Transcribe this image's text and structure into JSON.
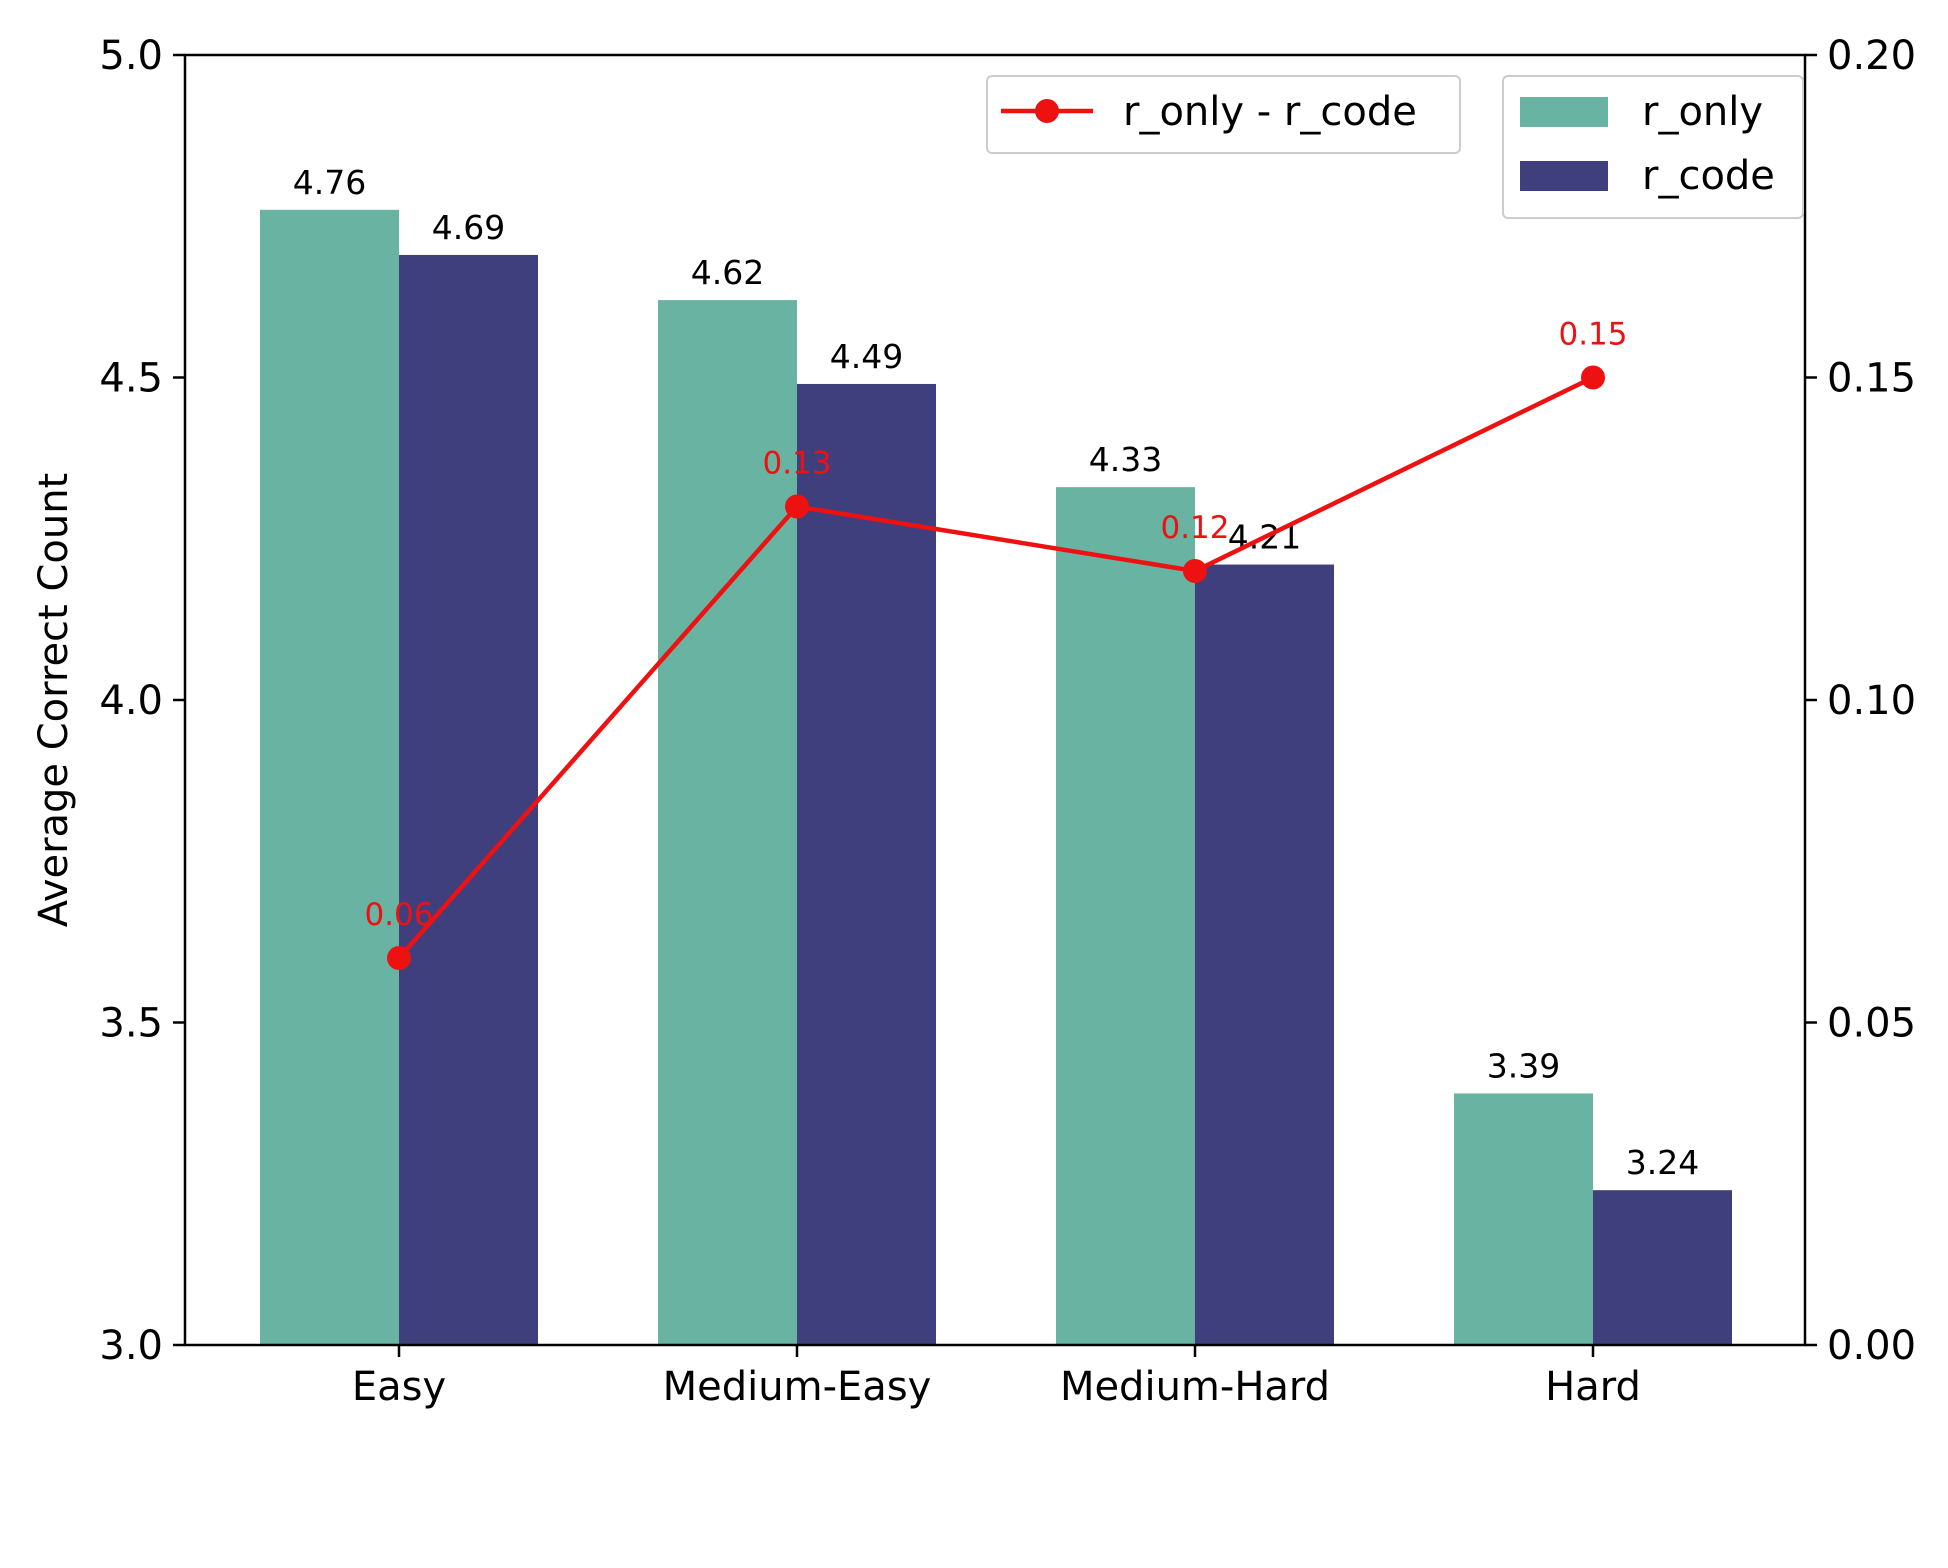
{
  "chart_data": {
    "type": "bar",
    "categories": [
      "Easy",
      "Medium-Easy",
      "Medium-Hard",
      "Hard"
    ],
    "series": [
      {
        "name": "r_only",
        "values": [
          4.76,
          4.62,
          4.33,
          3.39
        ],
        "color": "#69b3a2",
        "labels": [
          "4.76",
          "4.62",
          "4.33",
          "3.39"
        ]
      },
      {
        "name": "r_code",
        "values": [
          4.69,
          4.49,
          4.21,
          3.24
        ],
        "color": "#3f3f7d",
        "labels": [
          "4.69",
          "4.49",
          "4.21",
          "3.24"
        ]
      }
    ],
    "line_series": {
      "name": "r_only - r_code",
      "values": [
        0.06,
        0.13,
        0.12,
        0.15
      ],
      "labels": [
        "0.06",
        "0.13",
        "0.12",
        "0.15"
      ],
      "color": "#ee1111",
      "axis": "right"
    },
    "ylabel": "Average Correct Count",
    "ylim": [
      3.0,
      5.0
    ],
    "y_ticks": [
      "3.0",
      "3.5",
      "4.0",
      "4.5",
      "5.0"
    ],
    "y2lim": [
      0.0,
      0.2
    ],
    "y2_ticks": [
      "0.00",
      "0.05",
      "0.10",
      "0.15",
      "0.20"
    ],
    "grid": false,
    "legend_bars_placement": "top-right",
    "legend_line_placement": "top-center-right"
  }
}
